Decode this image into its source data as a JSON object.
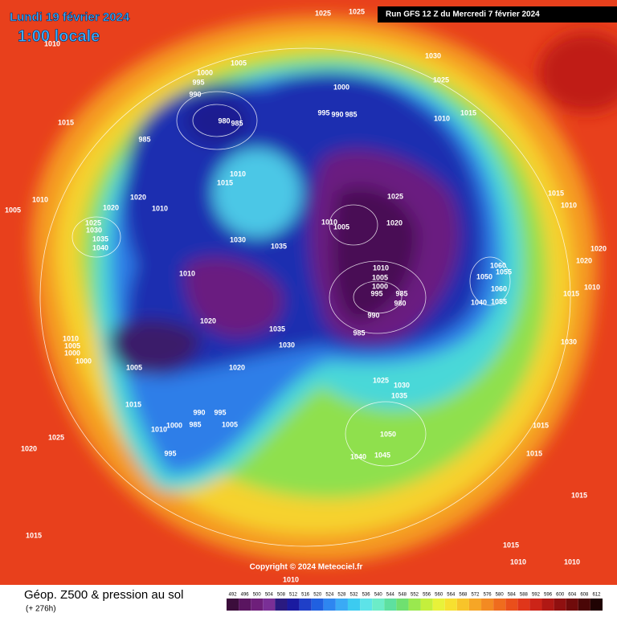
{
  "header": {
    "date": "Lundi 19 février 2024",
    "time": "1:00 locale",
    "run": "Run GFS 12 Z du Mercredi 7 février 2024"
  },
  "copyright": "Copyright © 2024 Meteociel.fr",
  "footer": {
    "title": "Géop. Z500 & pression au sol",
    "lead": "(+ 276h)"
  },
  "colorbar": {
    "values": [
      492,
      496,
      500,
      504,
      508,
      512,
      516,
      520,
      524,
      528,
      532,
      536,
      540,
      544,
      548,
      552,
      556,
      560,
      564,
      568,
      572,
      576,
      580,
      584,
      588,
      592,
      596,
      600,
      604,
      608,
      612
    ],
    "colors": [
      "#3b0d3b",
      "#5a1560",
      "#6e1f7a",
      "#7a2f96",
      "#2a1a80",
      "#1a1aa0",
      "#1f3fc8",
      "#2060e0",
      "#2e86f0",
      "#3aaaf5",
      "#3ccbf0",
      "#5de3e8",
      "#6cecc8",
      "#5ee0a0",
      "#6fe070",
      "#9ae84f",
      "#c4ef3c",
      "#e8f23a",
      "#f7e030",
      "#f8c42a",
      "#f6a626",
      "#f38a22",
      "#ef6c1e",
      "#ea4f1b",
      "#e0361a",
      "#cc2418",
      "#b01814",
      "#901010",
      "#700b0b",
      "#4a0707",
      "#200303"
    ]
  },
  "pressure_labels": [
    1025,
    1025,
    1010,
    1005,
    1030,
    1000,
    995,
    990,
    1025,
    1000,
    980,
    985,
    995,
    990,
    985,
    1015,
    1010,
    1015,
    985,
    1010,
    1015,
    1020,
    1010,
    1020,
    1010,
    1005,
    1025,
    1015,
    1010,
    1010,
    1005,
    1020,
    1025,
    1030,
    1035,
    1040,
    1030,
    1035,
    1020,
    1020,
    1060,
    1055,
    1050,
    1010,
    1010,
    1005,
    1000,
    995,
    985,
    980,
    1060,
    1010,
    1015,
    1040,
    1055,
    990,
    1020,
    985,
    1035,
    1030,
    1030,
    1010,
    1005,
    1000,
    1000,
    1005,
    1020,
    1025,
    1030,
    1035,
    1015,
    990,
    995,
    1005,
    1000,
    985,
    1010,
    1025,
    1015,
    1050,
    1020,
    995,
    1040,
    1045,
    1015,
    1015,
    1015,
    1015,
    1010,
    1010,
    1010
  ]
}
